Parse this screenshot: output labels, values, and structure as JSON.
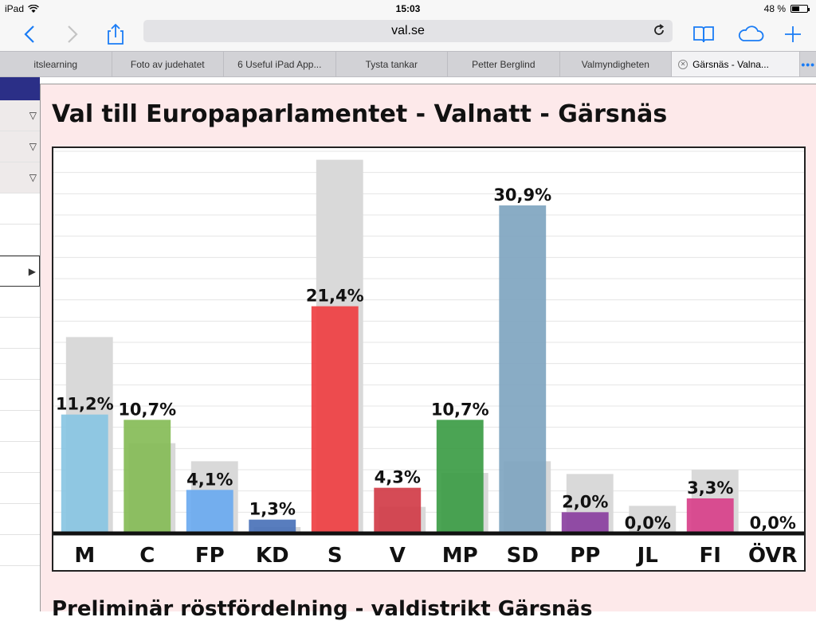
{
  "status_bar": {
    "device": "iPad",
    "time": "15:03",
    "battery": "48 %",
    "battery_level": 0.48
  },
  "browser": {
    "url": "val.se",
    "tabs": [
      {
        "label": "itslearning"
      },
      {
        "label": "Foto av judehatet"
      },
      {
        "label": "6 Useful iPad App..."
      },
      {
        "label": "Tysta tankar"
      },
      {
        "label": "Petter Berglind"
      },
      {
        "label": "Valmyndigheten"
      },
      {
        "label": "Gärsnäs - Valna...",
        "active": true
      }
    ],
    "accent_color": "#1a7cf5"
  },
  "page": {
    "title": "Val till Europaparlamentet - Valnatt - Gärsnäs",
    "subtitle": "Preliminär röstfördelning - valdistrikt Gärsnäs"
  },
  "chart_data": {
    "type": "bar",
    "categories": [
      "M",
      "C",
      "FP",
      "KD",
      "S",
      "V",
      "MP",
      "SD",
      "PP",
      "JL",
      "FI",
      "ÖVR"
    ],
    "series": [
      {
        "values": [
          11.2,
          10.7,
          4.1,
          1.3,
          21.4,
          4.3,
          10.7,
          30.9,
          2.0,
          0.0,
          3.3,
          0.0
        ],
        "labels": [
          "11,2%",
          "10,7%",
          "4,1%",
          "1,3%",
          "21,4%",
          "4,3%",
          "10,7%",
          "30,9%",
          "2,0%",
          "0,0%",
          "3,3%",
          "0,0%"
        ],
        "colors": [
          "#89c6e3",
          "#86bc57",
          "#6aaaf0",
          "#4a72b8",
          "#ef3f42",
          "#d13c48",
          "#3c9c45",
          "#7fa5c0",
          "#8a3fa0",
          "#9a9a9a",
          "#d8408a",
          "#9a9a9a"
        ]
      },
      {
        "values": [
          18.5,
          8.5,
          6.8,
          0.6,
          35.2,
          2.5,
          5.7,
          6.8,
          5.6,
          2.6,
          6.0,
          0.0
        ],
        "color": "#d9d9d9"
      }
    ],
    "ylim": [
      0,
      36
    ],
    "grid": true,
    "legend": "none"
  }
}
